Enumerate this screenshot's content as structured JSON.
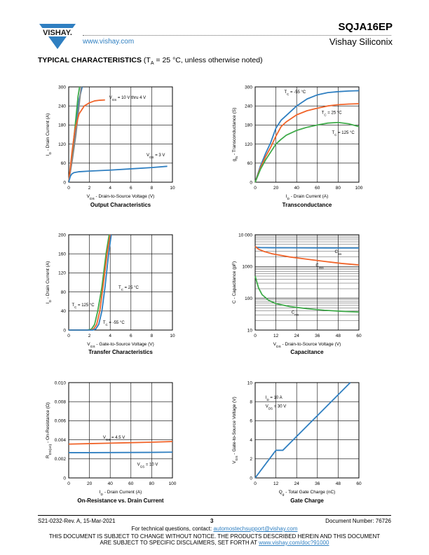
{
  "header": {
    "brand": "VISHAY.",
    "website": "www.vishay.com",
    "part_number": "SQJA16EP",
    "company": "Vishay Siliconix"
  },
  "section": {
    "title": "TYPICAL CHARACTERISTICS",
    "cond_pre": "(T",
    "cond_sub": "A",
    "cond_post": " = 25 °C, unless otherwise noted)"
  },
  "footer": {
    "doc_rev": "S21-0232-Rev. A, 15-Mar-2021",
    "page": "3",
    "doc_number": "Document Number: 76726",
    "contact_pre": "For technical questions, contact: ",
    "contact_email": "automostechsupport@vishay.com",
    "notice1": "THIS DOCUMENT IS SUBJECT TO CHANGE WITHOUT NOTICE. THE PRODUCTS DESCRIBED HEREIN AND THIS DOCUMENT",
    "notice2_pre": "ARE SUBJECT TO SPECIFIC DISCLAIMERS, SET FORTH AT ",
    "notice2_link": "www.vishay.com/doc?91000"
  },
  "colors": {
    "blue": "#2f7fc1",
    "orange": "#f0642a",
    "green": "#3faa4a",
    "gray": "#888888"
  },
  "charts": {
    "output": {
      "caption": "Output Characteristics",
      "chart_data": {
        "type": "line",
        "xlabel": "V_DS - Drain-to-Source Voltage (V)",
        "ylabel": "I_D - Drain Current (A)",
        "xlim": [
          0,
          10
        ],
        "ylim": [
          0,
          300
        ],
        "xticks": [
          "0",
          "2",
          "4",
          "6",
          "8",
          "10"
        ],
        "yticks": [
          "0",
          "60",
          "120",
          "180",
          "240",
          "300"
        ],
        "series": [
          {
            "color": "blue",
            "x": [
              0,
              0.3,
              0.6,
              1.0,
              1.3
            ],
            "y": [
              0,
              75,
              155,
              260,
              300
            ]
          },
          {
            "color": "green",
            "x": [
              0,
              0.3,
              0.6,
              0.9,
              1.05
            ],
            "y": [
              0,
              80,
              170,
              270,
              300
            ]
          },
          {
            "color": "gray",
            "x": [
              0,
              0.35,
              0.7,
              1.0,
              1.2
            ],
            "y": [
              0,
              70,
              150,
              240,
              300
            ]
          },
          {
            "color": "orange",
            "x": [
              0,
              0.3,
              0.6,
              1.0,
              1.5,
              2.0,
              2.5,
              3.0,
              3.5
            ],
            "y": [
              0,
              90,
              165,
              215,
              240,
              250,
              256,
              258,
              259
            ]
          },
          {
            "color": "blue",
            "x": [
              0,
              0.15,
              0.3,
              0.5,
              1.0,
              2,
              4,
              6,
              8,
              9.5
            ],
            "y": [
              0,
              18,
              26,
              30,
              33,
              35,
              38,
              42,
              46,
              50
            ]
          }
        ],
        "annotations": [
          {
            "x": 3.9,
            "y": 262,
            "main": "V",
            "sub": "GS",
            "rest": " = 10 V thru 4 V"
          },
          {
            "x": 7.5,
            "y": 82,
            "main": "V",
            "sub": "GS",
            "rest": " = 3 V"
          }
        ]
      }
    },
    "transconductance": {
      "caption": "Transconductance",
      "chart_data": {
        "type": "line",
        "xlabel": "I_D - Drain Current (A)",
        "ylabel": "g_fs - Transconductance (S)",
        "xlim": [
          0,
          100
        ],
        "ylim": [
          0,
          300
        ],
        "xticks": [
          "0",
          "20",
          "40",
          "60",
          "80",
          "100"
        ],
        "yticks": [
          "0",
          "60",
          "120",
          "180",
          "240",
          "300"
        ],
        "series": [
          {
            "color": "blue",
            "x": [
              0,
              5,
              10,
              15,
              20,
              25,
              30,
              40,
              50,
              60,
              70,
              80,
              90,
              100
            ],
            "y": [
              0,
              50,
              90,
              125,
              170,
              195,
              210,
              240,
              262,
              275,
              282,
              285,
              287,
              288
            ]
          },
          {
            "color": "orange",
            "x": [
              0,
              5,
              10,
              15,
              20,
              25,
              30,
              40,
              50,
              60,
              70,
              80,
              90,
              100
            ],
            "y": [
              0,
              45,
              80,
              110,
              145,
              175,
              190,
              212,
              225,
              233,
              240,
              244,
              246,
              247
            ]
          },
          {
            "color": "green",
            "x": [
              0,
              5,
              10,
              15,
              20,
              25,
              30,
              40,
              50,
              60,
              70,
              80,
              90,
              100
            ],
            "y": [
              0,
              40,
              70,
              95,
              120,
              135,
              148,
              163,
              173,
              180,
              186,
              188,
              184,
              175
            ]
          }
        ],
        "annotations": [
          {
            "x": 28,
            "y": 280,
            "main": "T",
            "sub": "C",
            "rest": " = -55 °C"
          },
          {
            "x": 64,
            "y": 215,
            "main": "T",
            "sub": "C",
            "rest": " = 25 °C"
          },
          {
            "x": 74,
            "y": 152,
            "main": "T",
            "sub": "C",
            "rest": " = 125 °C"
          }
        ]
      }
    },
    "transfer": {
      "caption": "Transfer Characteristics",
      "chart_data": {
        "type": "line",
        "xlabel": "V_GS - Gate-to-Source Voltage (V)",
        "ylabel": "I_D - Drain Current (A)",
        "xlim": [
          0,
          10
        ],
        "ylim": [
          0,
          200
        ],
        "xticks": [
          "0",
          "2",
          "4",
          "6",
          "8",
          "10"
        ],
        "yticks": [
          "0",
          "40",
          "80",
          "120",
          "160",
          "200"
        ],
        "series": [
          {
            "color": "green",
            "x": [
              0,
              1.8,
              2.2,
              2.5,
              2.8,
              3.2,
              3.6,
              3.9
            ],
            "y": [
              0,
              0,
              2,
              12,
              40,
              90,
              160,
              200
            ]
          },
          {
            "color": "orange",
            "x": [
              0,
              2.1,
              2.4,
              2.7,
              3.0,
              3.3,
              3.7,
              4.0
            ],
            "y": [
              0,
              0,
              2,
              12,
              40,
              90,
              160,
              200
            ]
          },
          {
            "color": "blue",
            "x": [
              0,
              2.3,
              2.6,
              2.9,
              3.2,
              3.5,
              3.85,
              4.1
            ],
            "y": [
              0,
              0,
              2,
              12,
              40,
              90,
              160,
              200
            ]
          }
        ],
        "annotations": [
          {
            "x": 4.8,
            "y": 87,
            "main": "T",
            "sub": "C",
            "rest": " = 25 °C"
          },
          {
            "x": 0.3,
            "y": 50,
            "main": "T",
            "sub": "C",
            "rest": " = 125 °C"
          },
          {
            "x": 3.3,
            "y": 13,
            "main": "T",
            "sub": "C",
            "rest": " = -55 °C"
          }
        ]
      }
    },
    "capacitance": {
      "caption": "Capacitance",
      "chart_data": {
        "type": "line",
        "log_y": true,
        "xlabel": "V_DS - Drain-to-Source Voltage (V)",
        "ylabel": "C - Capacitance (pF)",
        "xlim": [
          0,
          60
        ],
        "ylim": [
          10,
          10000
        ],
        "xticks": [
          "0",
          "12",
          "24",
          "36",
          "48",
          "60"
        ],
        "yticks": [
          "10",
          "100",
          "1000",
          "10 000"
        ],
        "series": [
          {
            "color": "blue",
            "x": [
              0,
              1,
              3,
              10,
              20,
              30,
              40,
              50,
              60
            ],
            "y": [
              4200,
              4000,
              3950,
              3900,
              3880,
              3860,
              3850,
              3840,
              3830
            ]
          },
          {
            "color": "orange",
            "x": [
              0,
              2,
              5,
              10,
              20,
              30,
              40,
              50,
              60
            ],
            "y": [
              4300,
              3500,
              3000,
              2500,
              2000,
              1700,
              1450,
              1250,
              1120
            ]
          },
          {
            "color": "green",
            "x": [
              0,
              1,
              2,
              4,
              8,
              12,
              20,
              30,
              40,
              50,
              60
            ],
            "y": [
              500,
              320,
              210,
              130,
              85,
              68,
              55,
              47,
              42,
              39,
              37
            ]
          }
        ],
        "annotations": [
          {
            "x": 46,
            "y": 2700,
            "main": "C",
            "sub": "iss",
            "rest": ""
          },
          {
            "x": 35,
            "y": 1000,
            "main": "C",
            "sub": "oss",
            "rest": ""
          },
          {
            "x": 21,
            "y": 33,
            "main": "C",
            "sub": "rss",
            "rest": ""
          }
        ]
      }
    },
    "onres": {
      "caption": "On-Resistance vs. Drain Current",
      "chart_data": {
        "type": "line",
        "xlabel": "I_D - Drain Current (A)",
        "ylabel": "R_DS(on) - On-Resistance (Ω)",
        "xlim": [
          0,
          100
        ],
        "ylim": [
          0,
          0.01
        ],
        "xticks": [
          "0",
          "20",
          "40",
          "60",
          "80",
          "100"
        ],
        "yticks": [
          "0",
          "0.002",
          "0.004",
          "0.006",
          "0.008",
          "0.010"
        ],
        "series": [
          {
            "color": "orange",
            "x": [
              0,
              20,
              40,
              60,
              80,
              100
            ],
            "y": [
              0.00355,
              0.0036,
              0.00365,
              0.0037,
              0.00375,
              0.00382
            ]
          },
          {
            "color": "blue",
            "x": [
              0,
              20,
              40,
              60,
              80,
              100
            ],
            "y": [
              0.00265,
              0.00265,
              0.00266,
              0.00267,
              0.00268,
              0.0027
            ]
          }
        ],
        "annotations": [
          {
            "x": 33,
            "y": 0.0041,
            "main": "V",
            "sub": "GS",
            "rest": " = 4.5 V"
          },
          {
            "x": 66,
            "y": 0.0013,
            "main": "V",
            "sub": "GS",
            "rest": " = 10 V"
          }
        ]
      }
    },
    "gate": {
      "caption": "Gate Charge",
      "chart_data": {
        "type": "line",
        "xlabel": "Q_g - Total Gate Charge (nC)",
        "ylabel": "V_GS - Gate-to-Source Voltage (V)",
        "xlim": [
          0,
          60
        ],
        "ylim": [
          0,
          10
        ],
        "xticks": [
          "0",
          "12",
          "24",
          "36",
          "48",
          "60"
        ],
        "yticks": [
          "0",
          "2",
          "4",
          "6",
          "8",
          "10"
        ],
        "series": [
          {
            "color": "blue",
            "x": [
              0,
              12,
              16,
              55
            ],
            "y": [
              0,
              2.9,
              2.9,
              10
            ]
          }
        ],
        "annotations": [
          {
            "x": 6,
            "y": 8.3,
            "main": "I",
            "sub": "D",
            "rest": " = 10 A"
          },
          {
            "x": 6,
            "y": 7.4,
            "main": "V",
            "sub": "DS",
            "rest": " = 30 V"
          }
        ]
      }
    }
  }
}
